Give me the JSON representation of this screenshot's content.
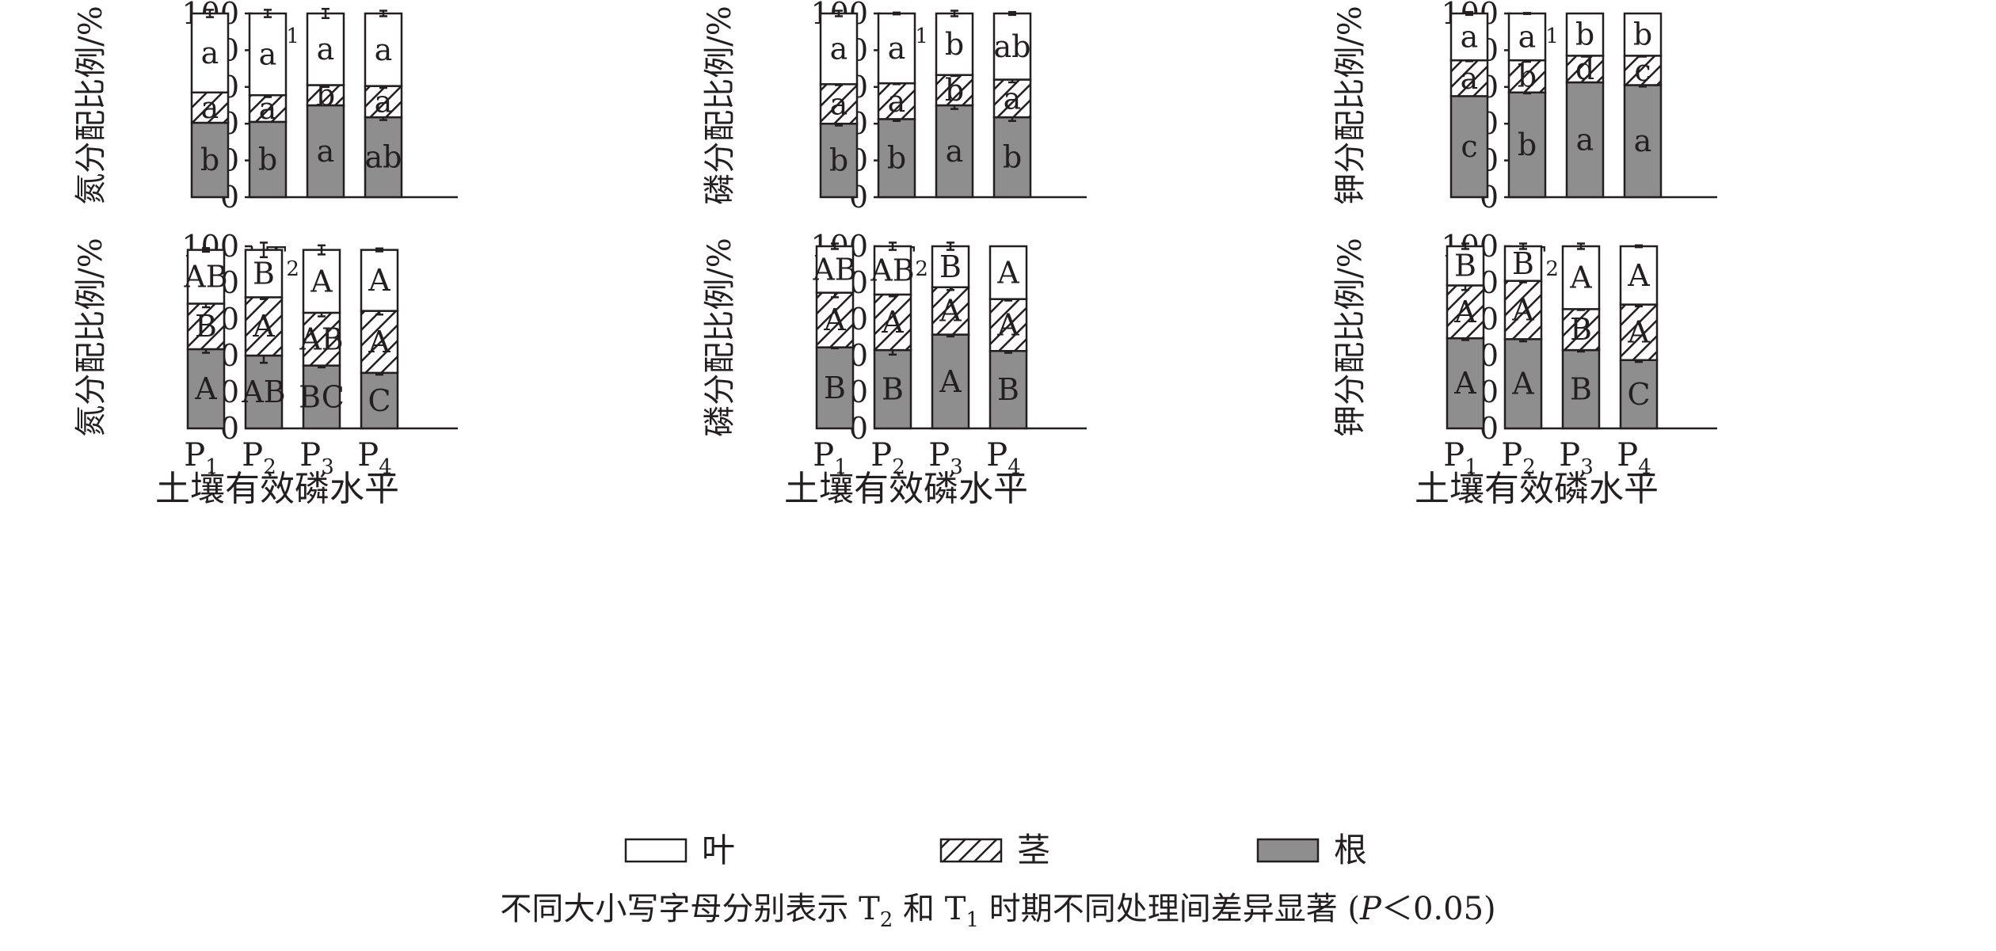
{
  "figure": {
    "x_axis_label": "土壤有效磷水平",
    "x_tick_labels": [
      [
        "P",
        "1"
      ],
      [
        "P",
        "2"
      ],
      [
        "P",
        "3"
      ],
      [
        "P",
        "4"
      ]
    ],
    "legend": [
      {
        "label": "叶",
        "fill": "white"
      },
      {
        "label": "茎",
        "fill": "hatch"
      },
      {
        "label": "根",
        "fill": "gray"
      }
    ],
    "footnote": {
      "prefix": "不同大小写字母分别表示 T",
      "sub1": "2",
      "mid": " 和 T",
      "sub2": "1",
      "rest": " 时期不同处理间差异显著 (",
      "p_italic": "P",
      "suffix": "＜0.05)"
    }
  },
  "colors": {
    "root": "#8e8e8e",
    "stem_hatch": "#231f20",
    "leaf": "#ffffff",
    "axis": "#231f20"
  },
  "chart_data": [
    {
      "type": "bar",
      "stacked": true,
      "row": 0,
      "col": 0,
      "ylabel": "氮分配比例/%",
      "tag": [
        "T",
        "1"
      ],
      "categories": [
        "P1",
        "P2",
        "P3",
        "P4"
      ],
      "ylim": [
        0,
        100
      ],
      "yticks": [
        0,
        20,
        40,
        60,
        80,
        100
      ],
      "series": [
        {
          "name": "根",
          "values": [
            40.5,
            41,
            50,
            43.5
          ],
          "letters": [
            "b",
            "b",
            "a",
            "ab"
          ],
          "err": [
            0,
            0,
            0,
            1.5
          ]
        },
        {
          "name": "茎",
          "values": [
            16.5,
            14.5,
            11,
            17
          ],
          "letters": [
            "a",
            "a",
            "b",
            "a"
          ],
          "err": [
            0,
            1,
            1,
            1
          ]
        },
        {
          "name": "叶",
          "values": [
            43,
            44.5,
            39,
            39.5
          ],
          "letters": [
            "a",
            "a",
            "a",
            "a"
          ],
          "err": [
            2,
            2,
            2.5,
            1.5
          ]
        }
      ]
    },
    {
      "type": "bar",
      "stacked": true,
      "row": 0,
      "col": 1,
      "ylabel": "磷分配比例/%",
      "tag": [
        "T",
        "1"
      ],
      "categories": [
        "P1",
        "P2",
        "P3",
        "P4"
      ],
      "ylim": [
        0,
        100
      ],
      "yticks": [
        0,
        20,
        40,
        60,
        80,
        100
      ],
      "series": [
        {
          "name": "根",
          "values": [
            40,
            42.5,
            50,
            43.5
          ],
          "letters": [
            "b",
            "b",
            "a",
            "b"
          ],
          "err": [
            1,
            1,
            2,
            2
          ]
        },
        {
          "name": "茎",
          "values": [
            21.5,
            19.5,
            16.5,
            20.5
          ],
          "letters": [
            "a",
            "a",
            "b",
            "a"
          ],
          "err": [
            0.5,
            0.5,
            0.5,
            1.5
          ]
        },
        {
          "name": "叶",
          "values": [
            38.5,
            38,
            33.5,
            36
          ],
          "letters": [
            "a",
            "a",
            "b",
            "ab"
          ],
          "err": [
            1.5,
            0.5,
            1.5,
            0.8
          ]
        }
      ]
    },
    {
      "type": "bar",
      "stacked": true,
      "row": 0,
      "col": 2,
      "ylabel": "钾分配比例/%",
      "tag": [
        "T",
        "1"
      ],
      "categories": [
        "P1",
        "P2",
        "P3",
        "P4"
      ],
      "ylim": [
        0,
        100
      ],
      "yticks": [
        0,
        20,
        40,
        60,
        80,
        100
      ],
      "series": [
        {
          "name": "根",
          "values": [
            55,
            57,
            62.5,
            61
          ],
          "letters": [
            "c",
            "b",
            "a",
            "a"
          ],
          "err": [
            0,
            0.5,
            0,
            0.8
          ]
        },
        {
          "name": "茎",
          "values": [
            19.5,
            17.5,
            14.5,
            16
          ],
          "letters": [
            "a",
            "b",
            "d",
            "c"
          ],
          "err": [
            0.5,
            0.8,
            0.5,
            0.5
          ]
        },
        {
          "name": "叶",
          "values": [
            25.5,
            25.5,
            23,
            23
          ],
          "letters": [
            "a",
            "a",
            "b",
            "b"
          ],
          "err": [
            0.8,
            0.3,
            0,
            0
          ]
        }
      ]
    },
    {
      "type": "bar",
      "stacked": true,
      "row": 1,
      "col": 0,
      "ylabel": "氮分配比例/%",
      "tag": [
        "T",
        "2"
      ],
      "categories": [
        "P1",
        "P2",
        "P3",
        "P4"
      ],
      "ylim": [
        0,
        100
      ],
      "yticks": [
        0,
        20,
        40,
        60,
        80,
        100
      ],
      "series": [
        {
          "name": "根",
          "values": [
            43.5,
            40,
            34.5,
            30.5
          ],
          "letters": [
            "A",
            "AB",
            "BC",
            "C"
          ],
          "err": [
            2,
            4,
            1,
            1
          ]
        },
        {
          "name": "茎",
          "values": [
            25,
            32,
            29,
            34
          ],
          "letters": [
            "B",
            "A",
            "AB",
            "A"
          ],
          "err": [
            2,
            1,
            2,
            2
          ]
        },
        {
          "name": "叶",
          "values": [
            29.5,
            26,
            34.5,
            33.5
          ],
          "letters": [
            "AB",
            "B",
            "A",
            "A"
          ],
          "err": [
            1,
            4,
            2.5,
            0.8
          ]
        }
      ]
    },
    {
      "type": "bar",
      "stacked": true,
      "row": 1,
      "col": 1,
      "ylabel": "磷分配比例/%",
      "tag": [
        "T",
        "2"
      ],
      "categories": [
        "P1",
        "P2",
        "P3",
        "P4"
      ],
      "ylim": [
        0,
        100
      ],
      "yticks": [
        0,
        20,
        40,
        60,
        80,
        100
      ],
      "series": [
        {
          "name": "根",
          "values": [
            44.5,
            43,
            51.5,
            42.5
          ],
          "letters": [
            "B",
            "B",
            "A",
            "B"
          ],
          "err": [
            0.5,
            2.5,
            1,
            1
          ]
        },
        {
          "name": "茎",
          "values": [
            30,
            30.5,
            26,
            28.5
          ],
          "letters": [
            "A",
            "A",
            "A",
            "A"
          ],
          "err": [
            2.5,
            1,
            1.5,
            0.8
          ]
        },
        {
          "name": "叶",
          "values": [
            25.5,
            26.5,
            22.5,
            29
          ],
          "letters": [
            "AB",
            "AB",
            "B",
            "A"
          ],
          "err": [
            1.5,
            2,
            2,
            0
          ]
        }
      ]
    },
    {
      "type": "bar",
      "stacked": true,
      "row": 1,
      "col": 2,
      "ylabel": "钾分配比例/%",
      "tag": [
        "T",
        "2"
      ],
      "categories": [
        "P1",
        "P2",
        "P3",
        "P4"
      ],
      "ylim": [
        0,
        100
      ],
      "yticks": [
        0,
        20,
        40,
        60,
        80,
        100
      ],
      "series": [
        {
          "name": "根",
          "values": [
            49.5,
            49,
            43,
            37.5
          ],
          "letters": [
            "A",
            "A",
            "B",
            "C"
          ],
          "err": [
            1,
            1.2,
            0.8,
            1
          ]
        },
        {
          "name": "茎",
          "values": [
            29,
            32,
            22.5,
            30.5
          ],
          "letters": [
            "A",
            "A",
            "B",
            "A"
          ],
          "err": [
            2.5,
            0.8,
            0.5,
            1
          ]
        },
        {
          "name": "叶",
          "values": [
            21.5,
            19,
            34.5,
            32
          ],
          "letters": [
            "B",
            "B",
            "A",
            "A"
          ],
          "err": [
            1.5,
            1.5,
            1.5,
            0.5
          ]
        }
      ]
    }
  ]
}
